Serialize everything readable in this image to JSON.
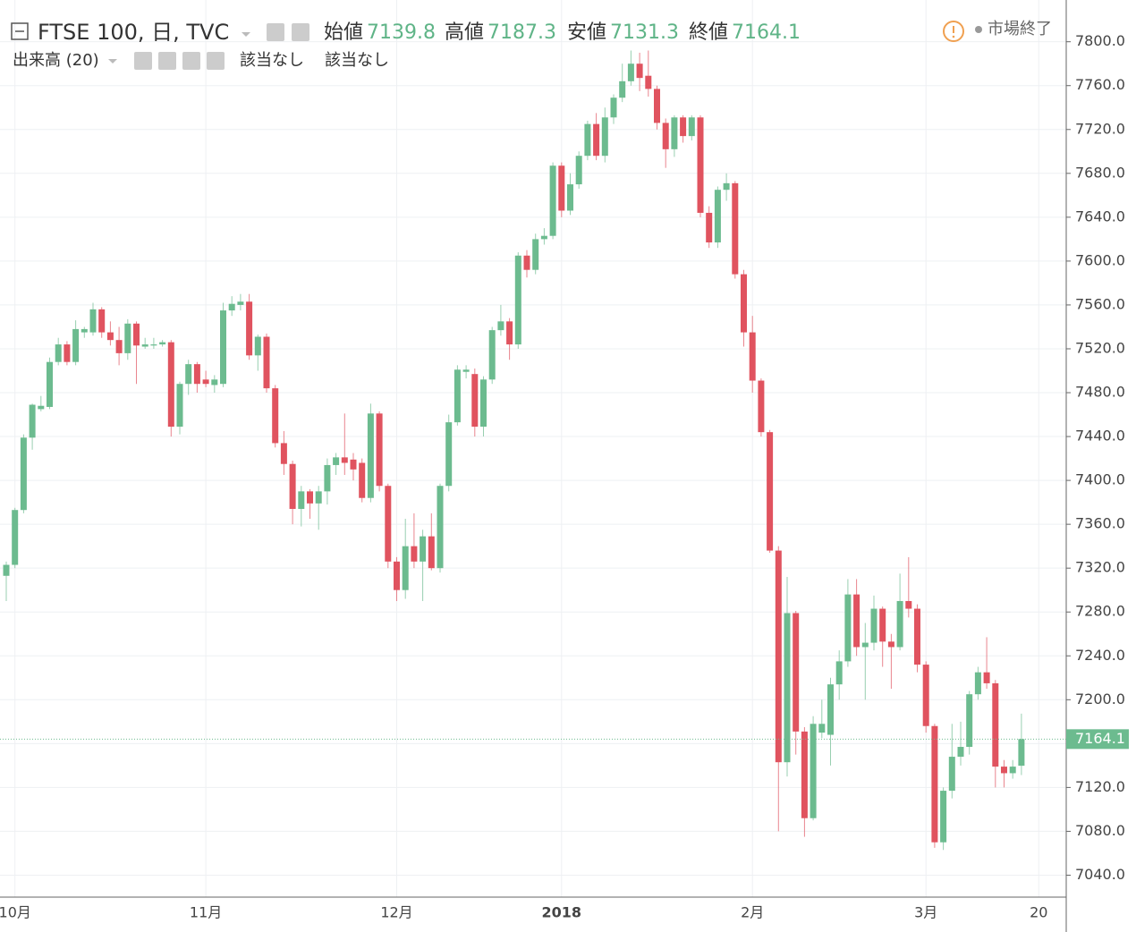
{
  "chart_data": {
    "type": "candlestick",
    "title": "FTSE 100, 日, TVC",
    "open_label": "始値",
    "high_label": "高値",
    "low_label": "安値",
    "close_label": "終値",
    "volume_label": "出来高 (20)",
    "volume_values": [
      "該当なし",
      "該当なし"
    ],
    "status": "市場終了",
    "up_color": "#6cbb8f",
    "down_color": "#e0535f",
    "grid": true,
    "ylim": [
      7020,
      7834
    ],
    "yticks": [
      {
        "value": 7040,
        "label": "7040.0"
      },
      {
        "value": 7080,
        "label": "7080.0"
      },
      {
        "value": 7120,
        "label": "7120.0"
      },
      {
        "value": 7160,
        "label": "7160.0"
      },
      {
        "value": 7200,
        "label": "7200.0"
      },
      {
        "value": 7240,
        "label": "7240.0"
      },
      {
        "value": 7280,
        "label": "7280.0"
      },
      {
        "value": 7320,
        "label": "7320.0"
      },
      {
        "value": 7360,
        "label": "7360.0"
      },
      {
        "value": 7400,
        "label": "7400.0"
      },
      {
        "value": 7440,
        "label": "7440.0"
      },
      {
        "value": 7480,
        "label": "7480.0"
      },
      {
        "value": 7520,
        "label": "7520.0"
      },
      {
        "value": 7560,
        "label": "7560.0"
      },
      {
        "value": 7600,
        "label": "7600.0"
      },
      {
        "value": 7640,
        "label": "7640.0"
      },
      {
        "value": 7680,
        "label": "7680.0"
      },
      {
        "value": 7720,
        "label": "7720.0"
      },
      {
        "value": 7760,
        "label": "7760.0"
      },
      {
        "value": 7800,
        "label": "7800.0"
      }
    ],
    "categories": [
      null,
      "10月",
      null,
      null,
      null,
      null,
      null,
      null,
      null,
      null,
      null,
      null,
      null,
      null,
      null,
      null,
      null,
      null,
      null,
      null,
      null,
      null,
      null,
      "11月",
      null,
      null,
      null,
      null,
      null,
      null,
      null,
      null,
      null,
      null,
      null,
      null,
      null,
      null,
      null,
      null,
      null,
      null,
      null,
      null,
      null,
      "12月",
      null,
      null,
      null,
      null,
      null,
      null,
      null,
      null,
      null,
      null,
      null,
      null,
      null,
      null,
      null,
      null,
      null,
      null,
      "2018",
      null,
      null,
      null,
      null,
      null,
      null,
      null,
      null,
      null,
      null,
      null,
      null,
      null,
      null,
      null,
      null,
      null,
      null,
      null,
      null,
      null,
      "2月",
      null,
      null,
      null,
      null,
      null,
      null,
      null,
      null,
      null,
      null,
      null,
      null,
      null,
      null,
      null,
      null,
      null,
      null,
      null,
      "3月",
      null,
      null,
      null,
      null,
      null,
      null,
      null,
      null,
      null,
      null,
      null,
      null,
      "20"
    ],
    "open": [
      7313,
      7323,
      7373,
      7439,
      7465,
      7467,
      7508,
      7524,
      7508,
      7535,
      7535,
      7556,
      7535,
      7528,
      7516,
      7543,
      7522,
      7523,
      7524,
      7526,
      7449,
      7488,
      7506,
      7492,
      7487,
      7488,
      7555,
      7560,
      7563,
      7514,
      7531,
      7484,
      7434,
      7415,
      7374,
      7390,
      7379,
      7390,
      7414,
      7421,
      7419,
      7416,
      7384,
      7461,
      7395,
      7326,
      7300,
      7340,
      7326,
      7349,
      7320,
      7395,
      7453,
      7499,
      7497,
      7449,
      7492,
      7537,
      7545,
      7524,
      7605,
      7592,
      7620,
      7623,
      7687,
      7646,
      7670,
      7696,
      7725,
      7696,
      7731,
      7749,
      7764,
      7780,
      7769,
      7757,
      7726,
      7702,
      7731,
      7714,
      7731,
      7644,
      7617,
      7665,
      7671,
      7588,
      7535,
      7491,
      7444,
      7336,
      7143,
      7279,
      7171,
      7092,
      7170,
      7168,
      7214,
      7235,
      7296,
      7248,
      7252,
      7283,
      7253,
      7248,
      7290,
      7283,
      7232,
      7176,
      7070,
      7117,
      7148,
      7157,
      7205,
      7225,
      7215,
      7139,
      7133,
      7139.8,
      null,
      null
    ],
    "high": [
      7326,
      7375,
      7442,
      7470,
      7477,
      7512,
      7530,
      7527,
      7546,
      7540,
      7562,
      7558,
      7545,
      7540,
      7547,
      7545,
      7530,
      7530,
      7528,
      7528,
      7490,
      7510,
      7508,
      7500,
      7496,
      7562,
      7568,
      7570,
      7570,
      7533,
      7534,
      7487,
      7445,
      7418,
      7395,
      7392,
      7395,
      7420,
      7425,
      7461,
      7425,
      7420,
      7470,
      7463,
      7397,
      7330,
      7365,
      7370,
      7355,
      7370,
      7397,
      7460,
      7505,
      7505,
      7502,
      7495,
      7540,
      7560,
      7548,
      7608,
      7610,
      7625,
      7630,
      7690,
      7690,
      7680,
      7700,
      7728,
      7735,
      7740,
      7752,
      7780,
      7792,
      7790,
      7792,
      7760,
      7730,
      7733,
      7733,
      7733,
      7733,
      7650,
      7668,
      7680,
      7673,
      7592,
      7550,
      7493,
      7446,
      7340,
      7312,
      7281,
      7175,
      7185,
      7200,
      7220,
      7245,
      7310,
      7310,
      7270,
      7295,
      7285,
      7260,
      7315,
      7330,
      7287,
      7235,
      7178,
      7120,
      7178,
      7180,
      7208,
      7230,
      7257,
      7218,
      7145,
      7145,
      7187.3,
      null,
      null
    ],
    "low": [
      7290,
      7320,
      7370,
      7428,
      7463,
      7465,
      7505,
      7505,
      7505,
      7530,
      7532,
      7530,
      7523,
      7505,
      7510,
      7488,
      7520,
      7520,
      7522,
      7440,
      7442,
      7478,
      7480,
      7485,
      7480,
      7485,
      7550,
      7555,
      7510,
      7500,
      7480,
      7430,
      7405,
      7360,
      7358,
      7365,
      7355,
      7378,
      7405,
      7405,
      7400,
      7380,
      7380,
      7390,
      7320,
      7290,
      7292,
      7320,
      7290,
      7318,
      7316,
      7390,
      7450,
      7493,
      7440,
      7440,
      7488,
      7532,
      7510,
      7520,
      7585,
      7588,
      7615,
      7620,
      7640,
      7642,
      7666,
      7692,
      7692,
      7690,
      7725,
      7745,
      7760,
      7755,
      7750,
      7720,
      7685,
      7695,
      7708,
      7710,
      7640,
      7612,
      7612,
      7655,
      7584,
      7522,
      7480,
      7440,
      7334,
      7080,
      7130,
      7150,
      7075,
      7090,
      7165,
      7140,
      7200,
      7230,
      7240,
      7200,
      7245,
      7230,
      7210,
      7245,
      7275,
      7225,
      7170,
      7065,
      7063,
      7110,
      7140,
      7150,
      7200,
      7210,
      7120,
      7120,
      7128,
      7131.3,
      null,
      null
    ],
    "close": [
      7323,
      7373,
      7439,
      7469,
      7468,
      7508,
      7524,
      7508,
      7538,
      7538,
      7556,
      7535,
      7528,
      7516,
      7543,
      7523,
      7524,
      7524,
      7526,
      7449,
      7488,
      7506,
      7488,
      7488,
      7492,
      7555,
      7561,
      7563,
      7514,
      7531,
      7484,
      7434,
      7415,
      7374,
      7390,
      7379,
      7390,
      7414,
      7421,
      7416,
      7410,
      7384,
      7461,
      7395,
      7326,
      7300,
      7340,
      7326,
      7349,
      7320,
      7395,
      7453,
      7501,
      7501,
      7449,
      7492,
      7537,
      7545,
      7524,
      7605,
      7592,
      7620,
      7623,
      7687,
      7646,
      7670,
      7696,
      7725,
      7696,
      7731,
      7749,
      7764,
      7780,
      7767,
      7757,
      7726,
      7702,
      7731,
      7714,
      7731,
      7644,
      7617,
      7665,
      7671,
      7588,
      7535,
      7491,
      7444,
      7336,
      7143,
      7279,
      7171,
      7092,
      7178,
      7178,
      7214,
      7235,
      7296,
      7248,
      7252,
      7283,
      7253,
      7248,
      7290,
      7283,
      7232,
      7176,
      7070,
      7117,
      7148,
      7157,
      7205,
      7225,
      7215,
      7139,
      7133,
      7139,
      7164.1,
      null,
      null
    ]
  }
}
